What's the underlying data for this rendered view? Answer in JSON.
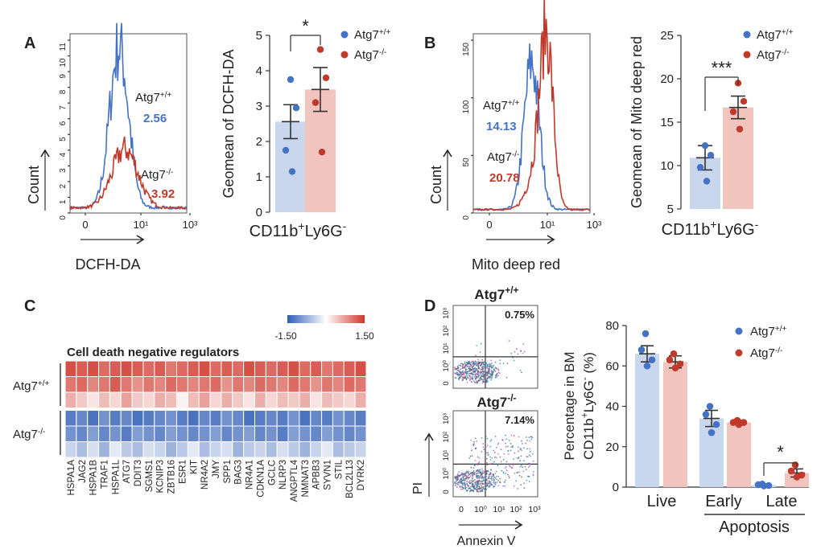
{
  "colors": {
    "wt": "#4472C4",
    "ko": "#C0392B",
    "wt_bar": "#C9D7EE",
    "ko_bar": "#F2C4BE",
    "heat_low": "#2E5DB5",
    "heat_mid": "#FFFFFF",
    "heat_high": "#D0352A"
  },
  "panels": {
    "a": "A",
    "b": "B",
    "c": "C",
    "d": "D"
  },
  "chart_data": [
    {
      "id": "A_hist",
      "type": "histogram",
      "xlabel": "DCFH-DA",
      "ylabel": "Count",
      "x_ticks": [
        "0",
        "10¹",
        "10³"
      ],
      "y_ticks": [
        "0",
        "1",
        "2",
        "3",
        "4",
        "5",
        "6",
        "7",
        "8",
        "9",
        "10",
        "11"
      ],
      "series": [
        {
          "name": "Atg7+/+",
          "label_base": "Atg7",
          "label_sup": "+/+",
          "value_label": "2.56"
        },
        {
          "name": "Atg7-/-",
          "label_base": "Atg7",
          "label_sup": "-/-",
          "value_label": "3.92"
        }
      ]
    },
    {
      "id": "A_bar",
      "type": "bar",
      "ylabel": "Geomean of DCFH-DA",
      "xlabel_base": "CD11b",
      "xlabel_sup1": "+",
      "xlabel_mid": "Ly6G",
      "xlabel_sup2": "-",
      "ylim": [
        0,
        5
      ],
      "y_ticks": [
        "0",
        "1",
        "2",
        "3",
        "4",
        "5"
      ],
      "significance": "*",
      "legend": [
        {
          "base": "Atg7",
          "sup": "+/+"
        },
        {
          "base": "Atg7",
          "sup": "-/-"
        }
      ],
      "series": [
        {
          "name": "Atg7+/+",
          "mean": 2.56,
          "sem": 0.48,
          "points": [
            3.75,
            2.95,
            1.75,
            1.15
          ]
        },
        {
          "name": "Atg7-/-",
          "mean": 3.47,
          "sem": 0.62,
          "points": [
            4.6,
            3.8,
            3.1,
            1.7
          ]
        }
      ]
    },
    {
      "id": "B_hist",
      "type": "histogram",
      "xlabel": "Mito deep red",
      "ylabel": "Count",
      "x_ticks": [
        "0",
        "10¹",
        "10³"
      ],
      "y_ticks": [
        "0",
        "50",
        "100",
        "150"
      ],
      "series": [
        {
          "name": "Atg7+/+",
          "label_base": "Atg7",
          "label_sup": "+/+",
          "value_label": "14.13"
        },
        {
          "name": "Atg7-/-",
          "label_base": "Atg7",
          "label_sup": "-/-",
          "value_label": "20.78"
        }
      ]
    },
    {
      "id": "B_bar",
      "type": "bar",
      "ylabel": "Geomean of Mito deep red",
      "xlabel_base": "CD11b",
      "xlabel_sup1": "+",
      "xlabel_mid": "Ly6G",
      "xlabel_sup2": "-",
      "ylim": [
        5,
        25
      ],
      "y_ticks": [
        "5",
        "10",
        "15",
        "20",
        "25"
      ],
      "significance": "***",
      "legend": [
        {
          "base": "Atg7",
          "sup": "+/+"
        },
        {
          "base": "Atg7",
          "sup": "-/-"
        }
      ],
      "series": [
        {
          "name": "Atg7+/+",
          "mean": 10.9,
          "sem": 1.4,
          "points": [
            12.3,
            11.2,
            9.8,
            8.2
          ]
        },
        {
          "name": "Atg7-/-",
          "mean": 16.7,
          "sem": 1.3,
          "points": [
            19.5,
            17.4,
            16.2,
            14.2
          ]
        }
      ]
    },
    {
      "id": "C_heatmap",
      "type": "heatmap",
      "title": "Cell death negative regulators",
      "scale_min": "-1.50",
      "scale_max": "1.50",
      "row_groups": [
        {
          "base": "Atg7",
          "sup": "+/+"
        },
        {
          "base": "Atg7",
          "sup": "-/-"
        }
      ],
      "genes": [
        "HSPA1A",
        "JAG2",
        "HSPA1B",
        "TRAF1",
        "HSPA1L",
        "ATG7",
        "DDIT3",
        "SGMS1",
        "KCNIP3",
        "ZBTB16",
        "ESR1",
        "KIT",
        "NR4A2",
        "JMY",
        "SPP1",
        "BAG3",
        "NR4A1",
        "CDKN1A",
        "GCLC",
        "NLRP3",
        "ANGPTL4",
        "NMNAT3",
        "APBB3",
        "SYVN1",
        "STIL",
        "BCL2L13",
        "DYRK2"
      ],
      "values": [
        [
          1.3,
          1.2,
          1.3,
          1.1,
          1.2,
          1.3,
          1.2,
          1.1,
          1.2,
          1.0,
          1.1,
          1.2,
          1.3,
          1.1,
          1.2,
          1.1,
          1.3,
          1.2,
          1.1,
          1.2,
          1.3,
          1.1,
          1.2,
          1.0,
          1.1,
          1.2,
          1.3
        ],
        [
          1.0,
          1.1,
          0.9,
          1.0,
          1.2,
          1.0,
          0.8,
          1.0,
          0.9,
          1.1,
          1.0,
          0.9,
          1.0,
          1.1,
          0.8,
          1.0,
          0.9,
          1.1,
          1.0,
          0.9,
          1.1,
          1.0,
          0.8,
          1.0,
          0.9,
          1.1,
          1.0
        ],
        [
          0.6,
          0.4,
          0.2,
          0.5,
          0.3,
          0.7,
          0.4,
          0.3,
          0.6,
          0.5,
          0.1,
          0.5,
          0.7,
          0.3,
          0.6,
          0.4,
          0.2,
          0.6,
          0.3,
          0.5,
          0.4,
          0.6,
          0.2,
          0.5,
          0.4,
          0.3,
          0.6
        ],
        [
          -1.2,
          -1.1,
          -1.3,
          -1.0,
          -1.2,
          -1.1,
          -1.3,
          -1.2,
          -1.1,
          -1.0,
          -1.2,
          -1.3,
          -1.1,
          -1.2,
          -1.0,
          -1.1,
          -1.3,
          -1.2,
          -1.1,
          -1.2,
          -1.0,
          -1.3,
          -1.1,
          -1.2,
          -1.0,
          -1.1,
          -1.2
        ],
        [
          -1.0,
          -1.1,
          -0.9,
          -1.1,
          -1.0,
          -1.2,
          -0.9,
          -1.0,
          -1.1,
          -0.9,
          -1.0,
          -1.1,
          -1.0,
          -0.9,
          -1.1,
          -1.0,
          -0.9,
          -1.1,
          -1.0,
          -1.2,
          -0.9,
          -1.0,
          -1.1,
          -0.9,
          -1.0,
          -1.1,
          -1.0
        ],
        [
          -0.4,
          -0.6,
          -0.3,
          -0.7,
          -0.2,
          -0.5,
          -0.6,
          -0.3,
          -0.4,
          -0.7,
          -0.5,
          -0.2,
          -0.6,
          -0.4,
          -0.3,
          -0.7,
          -0.5,
          -0.4,
          -0.6,
          -0.3,
          -0.5,
          -0.7,
          -0.4,
          -0.2,
          -0.6,
          -0.5,
          -0.4
        ]
      ]
    },
    {
      "id": "D_flow",
      "type": "scatter",
      "xlabel": "Annexin V",
      "ylabel": "PI",
      "x_ticks": [
        "0",
        "10⁰",
        "10¹",
        "10²",
        "10³"
      ],
      "y_ticks": [
        "0",
        "10⁰",
        "10¹",
        "10²",
        "10³"
      ],
      "plots": [
        {
          "title_base": "Atg7",
          "title_sup": "+/+",
          "percent": "0.75%"
        },
        {
          "title_base": "Atg7",
          "title_sup": "-/-",
          "percent": "7.14%"
        }
      ]
    },
    {
      "id": "D_bar",
      "type": "bar",
      "ylabel_line1": "Percentage in BM",
      "ylabel_line2_base": "CD11b",
      "ylabel_line2_sup1": "+",
      "ylabel_line2_mid": "Ly6G",
      "ylabel_line2_sup2": "-",
      "ylabel_line2_end": " (%)",
      "categories": [
        "Live",
        "Early",
        "Late"
      ],
      "group_label": "Apoptosis",
      "ylim": [
        0,
        80
      ],
      "y_ticks": [
        "0",
        "20",
        "40",
        "60",
        "80"
      ],
      "significance": "*",
      "legend": [
        {
          "base": "Atg7",
          "sup": "+/+"
        },
        {
          "base": "Atg7",
          "sup": "-/-"
        }
      ],
      "series": [
        {
          "name": "Atg7+/+",
          "values": [
            66,
            34,
            1
          ],
          "sem": [
            4,
            4,
            0.3
          ],
          "points": [
            [
              76,
              68,
              63,
              60
            ],
            [
              40,
              36,
              31,
              27
            ],
            [
              1.5,
              1.2,
              0.8,
              0.6
            ]
          ]
        },
        {
          "name": "Atg7-/-",
          "values": [
            62,
            32,
            7
          ],
          "sem": [
            3,
            1,
            2
          ],
          "points": [
            [
              66,
              63,
              61,
              59
            ],
            [
              33,
              32,
              32,
              31
            ],
            [
              11,
              8,
              6,
              5
            ]
          ]
        }
      ]
    }
  ]
}
